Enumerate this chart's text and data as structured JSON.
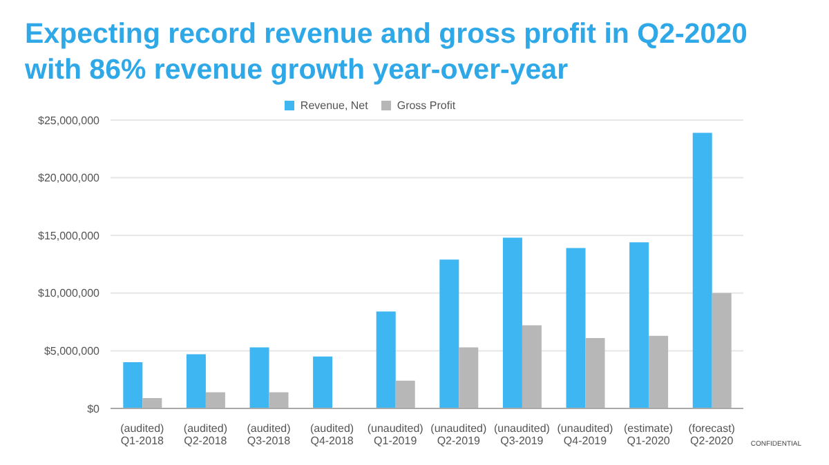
{
  "chart_data": {
    "type": "bar",
    "title": "Expecting record revenue and gross profit in Q2-2020 with 86% revenue growth year-over-year",
    "categories": [
      "(audited)\nQ1-2018",
      "(audited)\nQ2-2018",
      "(audited)\nQ3-2018",
      "(audited)\nQ4-2018",
      "(unaudited)\nQ1-2019",
      "(unaudited)\nQ2-2019",
      "(unaudited)\nQ3-2019",
      "(unaudited)\nQ4-2019",
      "(estimate)\nQ1-2020",
      "(forecast)\nQ2-2020"
    ],
    "series": [
      {
        "name": "Revenue, Net",
        "color": "#3db6f2",
        "values": [
          4000000,
          4700000,
          5300000,
          4500000,
          8400000,
          12900000,
          14800000,
          13900000,
          14400000,
          23900000
        ]
      },
      {
        "name": "Gross Profit",
        "color": "#b7b7b7",
        "values": [
          900000,
          1400000,
          1400000,
          0,
          2400000,
          5300000,
          7200000,
          6100000,
          6300000,
          10000000
        ]
      }
    ],
    "ylim": [
      0,
      25000000
    ],
    "yticks": [
      {
        "value": 0,
        "label": "$0"
      },
      {
        "value": 5000000,
        "label": "$5,000,000"
      },
      {
        "value": 10000000,
        "label": "$10,000,000"
      },
      {
        "value": 15000000,
        "label": "$15,000,000"
      },
      {
        "value": 20000000,
        "label": "$20,000,000"
      },
      {
        "value": 25000000,
        "label": "$25,000,000"
      }
    ],
    "grid": "y",
    "legend": "top",
    "annotations": [
      "CONFIDENTIAL"
    ]
  }
}
